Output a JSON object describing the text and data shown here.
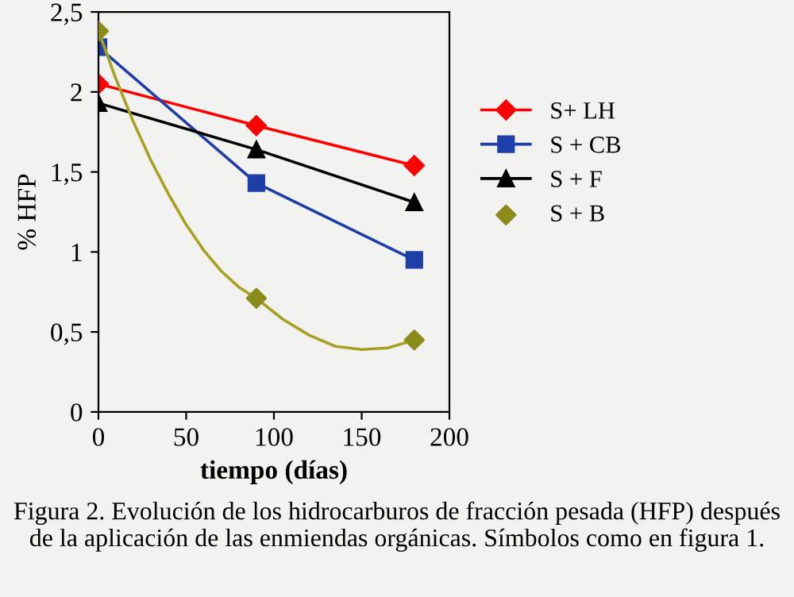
{
  "chart_data": {
    "type": "line",
    "xlabel": "tiempo (días)",
    "ylabel": "% HFP",
    "x": [
      0,
      90,
      180
    ],
    "series": [
      {
        "name": "S+ LH",
        "color": "#ff0000",
        "values": [
          2.05,
          1.79,
          1.54
        ],
        "marker": "diamond"
      },
      {
        "name": "S + CB",
        "color": "#1f3fa8",
        "values": [
          2.28,
          1.43,
          0.95
        ],
        "marker": "square"
      },
      {
        "name": "S + F",
        "color": "#000000",
        "values": [
          1.93,
          1.64,
          1.31
        ],
        "marker": "triangle"
      },
      {
        "name": "S + B",
        "type": "scatter",
        "color": "#8b8b1a",
        "values": [
          2.38,
          0.71,
          0.45
        ],
        "marker": "diamond"
      },
      {
        "type": "line",
        "color": "#a8a020",
        "x": [
          0,
          10,
          20,
          30,
          40,
          50,
          60,
          70,
          80,
          90,
          105,
          120,
          135,
          150,
          165,
          180
        ],
        "values": [
          2.38,
          2.08,
          1.81,
          1.57,
          1.36,
          1.17,
          1.01,
          0.88,
          0.78,
          0.71,
          0.58,
          0.48,
          0.41,
          0.39,
          0.4,
          0.45
        ],
        "marker": "none"
      }
    ],
    "xlim": [
      0,
      200
    ],
    "xticks": [
      0,
      50,
      100,
      150,
      200
    ],
    "ylim": [
      0,
      2.5
    ],
    "yticks": [
      0,
      {
        "value": 0.5,
        "label": "0,5"
      },
      1,
      {
        "value": 1.5,
        "label": "1,5"
      },
      2,
      {
        "value": 2.5,
        "label": "2,5"
      }
    ],
    "grid": false,
    "legend": "right",
    "annotations": [
      "Figura 2. Evolución de los hidrocarburos de fracción pesada (HFP) después de la aplicación de las enmiendas orgánicas. Símbolos como en figura 1."
    ]
  }
}
